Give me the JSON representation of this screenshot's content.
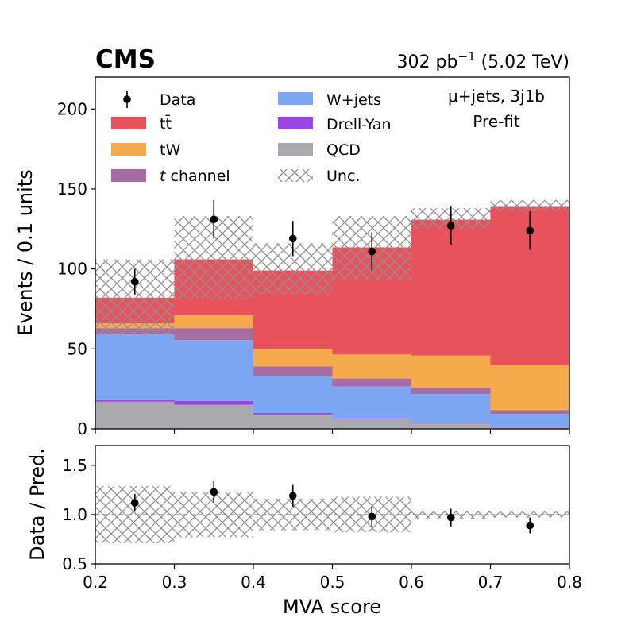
{
  "header": {
    "experiment": "CMS",
    "lumi_value": "302",
    "lumi_unit": "pb",
    "lumi_exp": "−1",
    "energy": "(5.02 TeV)"
  },
  "annotations": {
    "channel": "μ+jets, 3j1b",
    "fit_state": "Pre-fit"
  },
  "chart_data": [
    {
      "type": "bar",
      "subtype": "stacked-histogram",
      "title": "",
      "xlabel": "MVA score",
      "ylabel": "Events / 0.1 units",
      "xlim": [
        0.2,
        0.8
      ],
      "ylim": [
        0,
        220
      ],
      "x_ticks": [
        "0.2",
        "0.3",
        "0.4",
        "0.5",
        "0.6",
        "0.7",
        "0.8"
      ],
      "y_ticks": [
        "0",
        "50",
        "100",
        "150",
        "200"
      ],
      "y_tick_values": [
        0,
        50,
        100,
        150,
        200
      ],
      "bin_edges": [
        0.2,
        0.3,
        0.4,
        0.5,
        0.6,
        0.7,
        0.8
      ],
      "bin_centers": [
        0.25,
        0.35,
        0.45,
        0.55,
        0.65,
        0.75
      ],
      "series": [
        {
          "name": "QCD",
          "label": "QCD",
          "color": "#aaa9ae",
          "values": [
            17,
            15,
            9,
            6,
            3.5,
            1
          ]
        },
        {
          "name": "Drell-Yan",
          "label": "Drell-Yan",
          "color": "#9a45e6",
          "values": [
            1,
            2.5,
            1,
            0.5,
            0.3,
            0.3
          ]
        },
        {
          "name": "W+jets",
          "label": "W+jets",
          "color": "#7aa6f4",
          "values": [
            41,
            38,
            23,
            20,
            18,
            8
          ]
        },
        {
          "name": "t channel",
          "label_prefix": "t",
          "label_suffix": " channel",
          "color": "#a86da0",
          "values": [
            4,
            7.5,
            6,
            5,
            4,
            2.5
          ]
        },
        {
          "name": "tW",
          "label": "tW",
          "color": "#f7aa4c",
          "values": [
            3,
            8,
            11,
            15,
            20,
            28
          ]
        },
        {
          "name": "ttbar",
          "label": "tt̄",
          "color": "#e8525d",
          "values": [
            16,
            35,
            49,
            67,
            85,
            99
          ]
        }
      ],
      "uncertainty": {
        "label": "Unc.",
        "band_low": [
          59,
          81,
          84,
          93,
          125,
          136
        ],
        "band_high": [
          106,
          133,
          116,
          133,
          138,
          143
        ]
      },
      "data": {
        "label": "Data",
        "values": [
          92,
          131,
          119,
          111,
          127,
          124
        ],
        "errors": [
          8,
          12,
          11,
          12,
          12,
          12
        ]
      },
      "legend_position": "top-left",
      "legend_order": [
        "Data",
        "tt̄",
        "tW",
        "t channel",
        "W+jets",
        "Drell-Yan",
        "QCD",
        "Unc."
      ]
    },
    {
      "type": "scatter",
      "subtype": "ratio-panel",
      "xlabel": "MVA score",
      "ylabel": "Data / Pred.",
      "xlim": [
        0.2,
        0.8
      ],
      "ylim": [
        0.5,
        1.7
      ],
      "y_ticks": [
        "0.5",
        "1.0",
        "1.5"
      ],
      "y_tick_values": [
        0.5,
        1.0,
        1.5
      ],
      "reference_line": 1.0,
      "x": [
        0.25,
        0.35,
        0.45,
        0.55,
        0.65,
        0.75
      ],
      "values": [
        1.12,
        1.23,
        1.19,
        0.98,
        0.97,
        0.89
      ],
      "errors": [
        0.09,
        0.11,
        0.11,
        0.1,
        0.09,
        0.08
      ],
      "band_low": [
        0.71,
        0.77,
        0.84,
        0.82,
        0.96,
        0.97
      ],
      "band_high": [
        1.29,
        1.23,
        1.16,
        1.18,
        1.04,
        1.03
      ]
    }
  ]
}
